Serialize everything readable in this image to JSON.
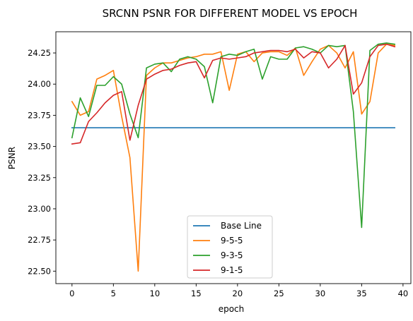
{
  "chart_data": {
    "type": "line",
    "title": "SRCNN PSNR FOR DIFFERENT MODEL VS EPOCH",
    "xlabel": "epoch",
    "ylabel": "PSNR",
    "xlim": [
      -1.95,
      40.95
    ],
    "ylim": [
      22.4,
      24.42
    ],
    "xticks": [
      0,
      5,
      10,
      15,
      20,
      25,
      30,
      35,
      40
    ],
    "yticks": [
      22.5,
      22.75,
      23.0,
      23.25,
      23.5,
      23.75,
      24.0,
      24.25
    ],
    "yticklabels": [
      "22.50",
      "22.75",
      "23.00",
      "23.25",
      "23.50",
      "23.75",
      "24.00",
      "24.25"
    ],
    "grid": false,
    "legend_position": "lower-center",
    "x": [
      0,
      1,
      2,
      3,
      4,
      5,
      6,
      7,
      8,
      9,
      10,
      11,
      12,
      13,
      14,
      15,
      16,
      17,
      18,
      19,
      20,
      21,
      22,
      23,
      24,
      25,
      26,
      27,
      28,
      29,
      30,
      31,
      32,
      33,
      34,
      35,
      36,
      37,
      38,
      39
    ],
    "series": [
      {
        "name": "Base Line",
        "color": "#1f77b4",
        "values": [
          23.65,
          23.65,
          23.65,
          23.65,
          23.65,
          23.65,
          23.65,
          23.65,
          23.65,
          23.65,
          23.65,
          23.65,
          23.65,
          23.65,
          23.65,
          23.65,
          23.65,
          23.65,
          23.65,
          23.65,
          23.65,
          23.65,
          23.65,
          23.65,
          23.65,
          23.65,
          23.65,
          23.65,
          23.65,
          23.65,
          23.65,
          23.65,
          23.65,
          23.65,
          23.65,
          23.65,
          23.65,
          23.65,
          23.65,
          23.65
        ]
      },
      {
        "name": "9-5-5",
        "color": "#ff7f0e",
        "values": [
          23.86,
          23.75,
          23.78,
          24.04,
          24.07,
          24.11,
          23.74,
          23.41,
          22.5,
          24.07,
          24.13,
          24.17,
          24.17,
          24.19,
          24.21,
          24.22,
          24.24,
          24.24,
          24.26,
          23.95,
          24.24,
          24.26,
          24.18,
          24.25,
          24.26,
          24.26,
          24.23,
          24.29,
          24.07,
          24.18,
          24.28,
          24.31,
          24.25,
          24.13,
          24.26,
          23.76,
          23.86,
          24.25,
          24.32,
          24.31
        ]
      },
      {
        "name": "9-3-5",
        "color": "#2ca02c",
        "values": [
          23.57,
          23.89,
          23.74,
          23.99,
          23.99,
          24.06,
          24.0,
          23.76,
          23.57,
          24.13,
          24.16,
          24.17,
          24.1,
          24.2,
          24.22,
          24.2,
          24.14,
          23.85,
          24.22,
          24.24,
          24.23,
          24.26,
          24.28,
          24.04,
          24.22,
          24.2,
          24.2,
          24.29,
          24.3,
          24.28,
          24.25,
          24.31,
          24.3,
          24.31,
          23.78,
          22.85,
          24.27,
          24.32,
          24.33,
          24.32
        ]
      },
      {
        "name": "9-1-5",
        "color": "#d62728",
        "values": [
          23.52,
          23.53,
          23.7,
          23.77,
          23.85,
          23.91,
          23.94,
          23.55,
          23.83,
          24.04,
          24.08,
          24.11,
          24.12,
          24.15,
          24.17,
          24.18,
          24.05,
          24.19,
          24.21,
          24.2,
          24.21,
          24.22,
          24.25,
          24.26,
          24.27,
          24.27,
          24.26,
          24.28,
          24.21,
          24.26,
          24.25,
          24.13,
          24.2,
          24.31,
          23.92,
          24.01,
          24.22,
          24.31,
          24.32,
          24.3
        ]
      }
    ]
  }
}
